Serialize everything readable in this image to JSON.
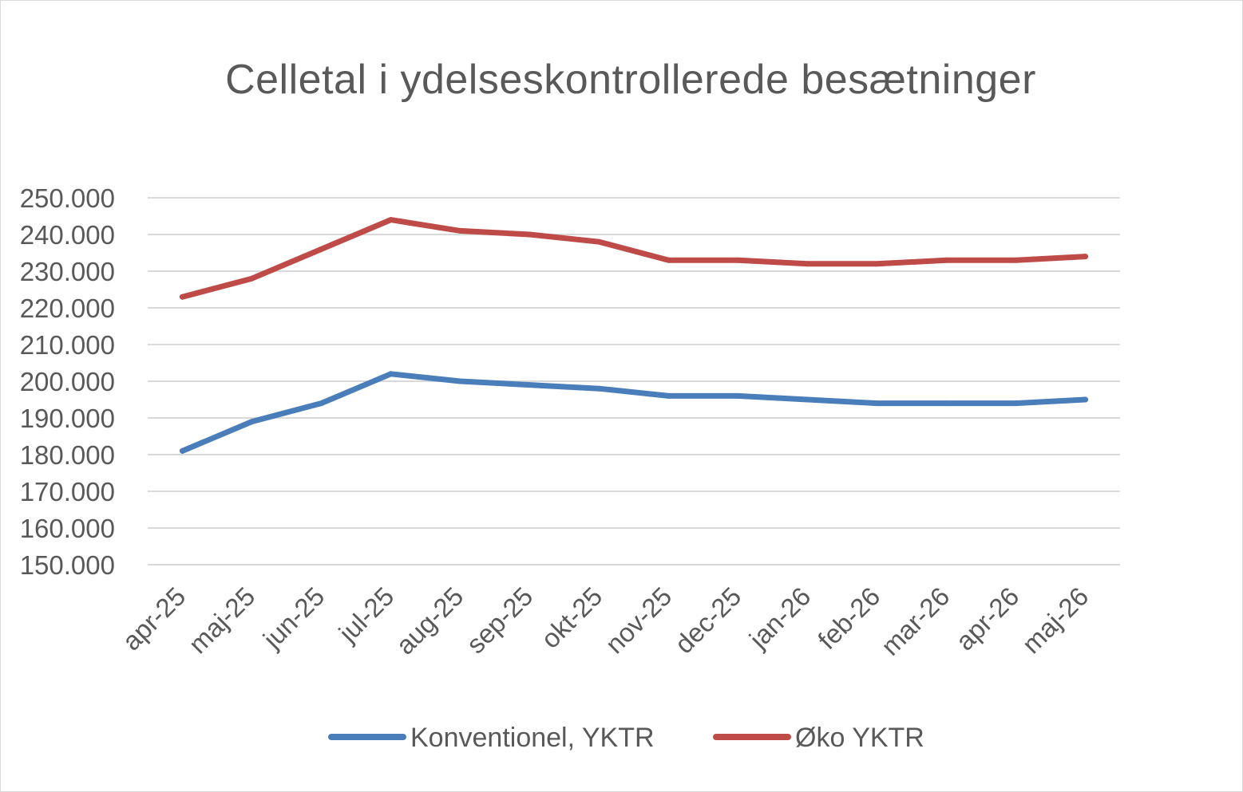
{
  "chart_data": {
    "type": "line",
    "title": "Celletal i ydelseskontrollerede besætninger",
    "xlabel": "",
    "ylabel": "",
    "categories": [
      "apr-25",
      "maj-25",
      "jun-25",
      "jul-25",
      "aug-25",
      "sep-25",
      "okt-25",
      "nov-25",
      "dec-25",
      "jan-26",
      "feb-26",
      "mar-26",
      "apr-26",
      "maj-26"
    ],
    "ylim": [
      150000,
      250000
    ],
    "yticks": [
      150000,
      160000,
      170000,
      180000,
      190000,
      200000,
      210000,
      220000,
      230000,
      240000,
      250000
    ],
    "ytick_labels": [
      "150.000",
      "160.000",
      "170.000",
      "180.000",
      "190.000",
      "200.000",
      "210.000",
      "220.000",
      "230.000",
      "240.000",
      "250.000"
    ],
    "grid": true,
    "legend_position": "bottom",
    "series": [
      {
        "name": "Konventionel, YKTR",
        "color": "#4a7ebb",
        "values": [
          181000,
          189000,
          194000,
          202000,
          200000,
          199000,
          198000,
          196000,
          196000,
          195000,
          194000,
          194000,
          194000,
          195000
        ]
      },
      {
        "name": "Øko YKTR",
        "color": "#be4b48",
        "values": [
          223000,
          228000,
          236000,
          244000,
          241000,
          240000,
          238000,
          233000,
          233000,
          232000,
          232000,
          233000,
          233000,
          234000
        ]
      }
    ]
  }
}
